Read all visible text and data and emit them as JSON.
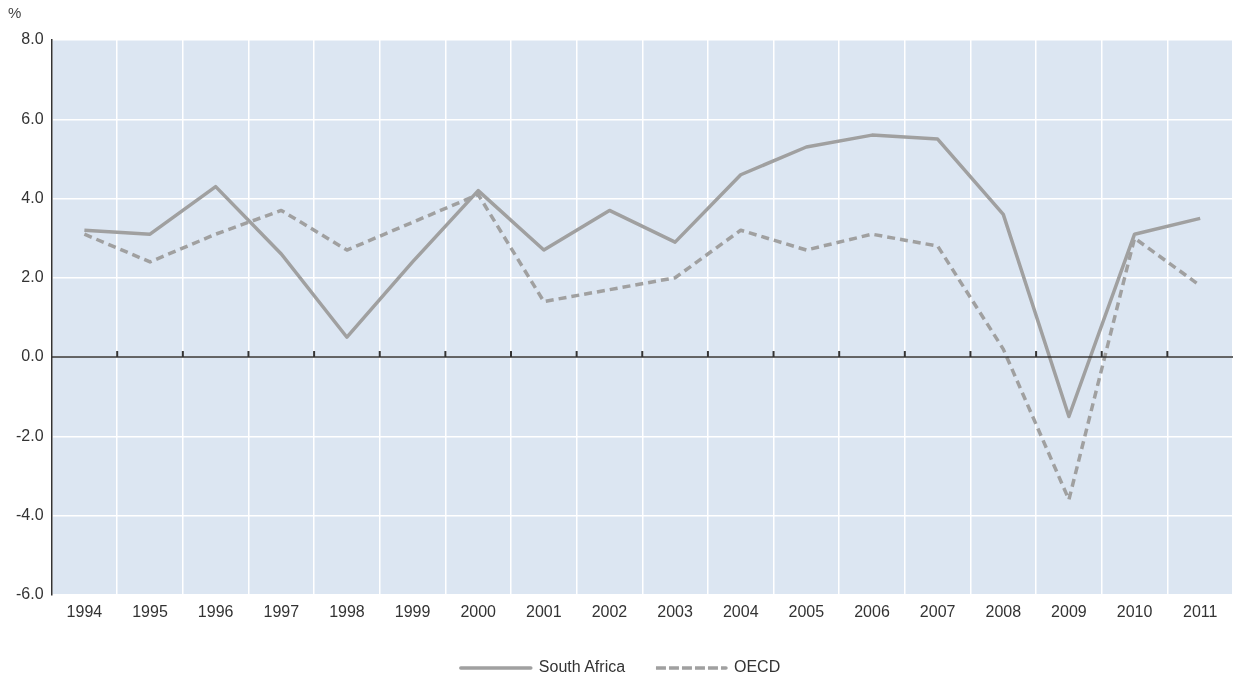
{
  "chart_data": {
    "type": "line",
    "ylabel": "%",
    "categories": [
      "1994",
      "1995",
      "1996",
      "1997",
      "1998",
      "1999",
      "2000",
      "2001",
      "2002",
      "2003",
      "2004",
      "2005",
      "2006",
      "2007",
      "2008",
      "2009",
      "2010",
      "2011"
    ],
    "series": [
      {
        "name": "South Africa",
        "color": "#a0a0a0",
        "line_style": "solid",
        "values": [
          3.2,
          3.1,
          4.3,
          2.6,
          0.5,
          2.4,
          4.2,
          2.7,
          3.7,
          2.9,
          4.6,
          5.3,
          5.6,
          5.5,
          3.6,
          -1.5,
          3.1,
          3.5
        ]
      },
      {
        "name": "OECD",
        "color": "#a0a0a0",
        "line_style": "dashed",
        "values": [
          3.1,
          2.4,
          3.1,
          3.7,
          2.7,
          3.4,
          4.1,
          1.4,
          1.7,
          2.0,
          3.2,
          2.7,
          3.1,
          2.8,
          0.2,
          -3.6,
          3.0,
          1.8
        ]
      }
    ],
    "ylim": [
      -6,
      8
    ],
    "yticks": [
      {
        "value": -6,
        "label": "-6.0"
      },
      {
        "value": -4,
        "label": "-4.0"
      },
      {
        "value": -2,
        "label": "-2.0"
      },
      {
        "value": 0,
        "label": "0.0"
      },
      {
        "value": 2,
        "label": "2.0"
      },
      {
        "value": 4,
        "label": "4.0"
      },
      {
        "value": 6,
        "label": "6.0"
      },
      {
        "value": 8,
        "label": "8.0"
      }
    ],
    "grid": true,
    "legend": "bottom",
    "marker": "none"
  }
}
